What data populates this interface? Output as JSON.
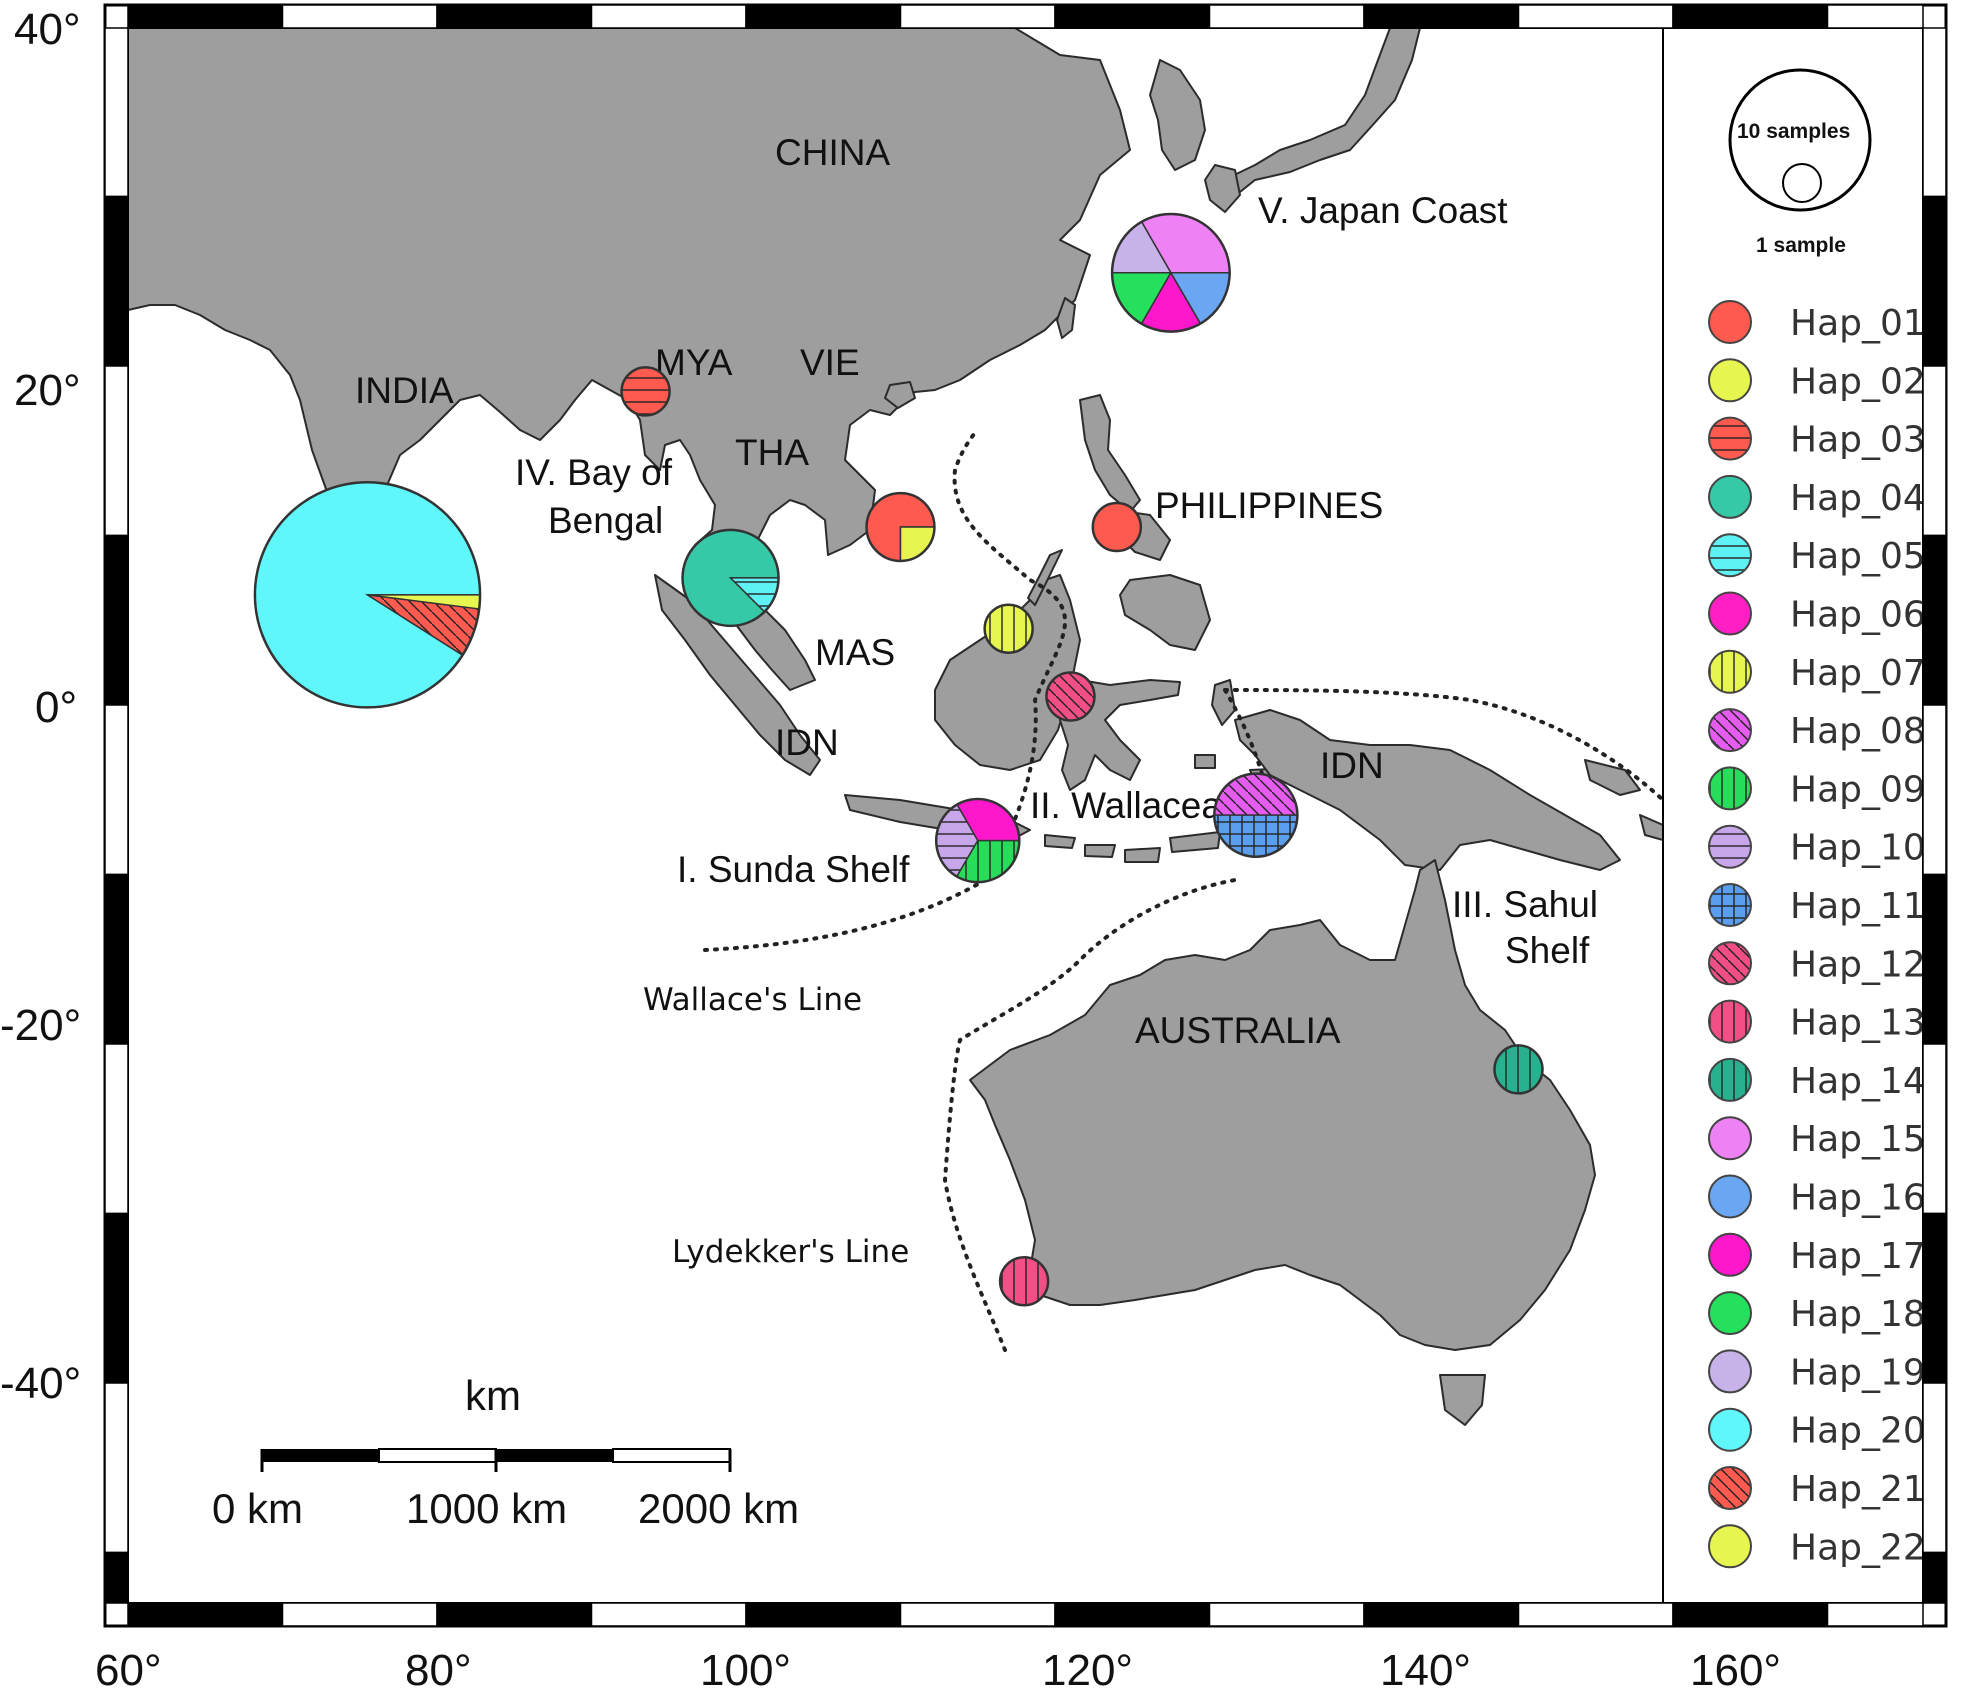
{
  "axes": {
    "lat_labels": [
      "40°",
      "20°",
      "0°",
      "-20°",
      "-40°"
    ],
    "lon_labels": [
      "60°",
      "80°",
      "100°",
      "120°",
      "140°",
      "160°"
    ]
  },
  "regions": {
    "china": "CHINA",
    "india": "INDIA",
    "mya": "MYA",
    "vie": "VIE",
    "tha": "THA",
    "mas": "MAS",
    "idn_west": "IDN",
    "idn_east": "IDN",
    "philippines": "PHILIPPINES",
    "australia": "AUSTRALIA",
    "japan_coast": "V. Japan Coast",
    "bay_line1": "IV. Bay of",
    "bay_line2": "Bengal",
    "wallacea": "II. Wallacea",
    "sunda": "I. Sunda Shelf",
    "sahul_line1": "III. Sahul",
    "sahul_line2": "Shelf"
  },
  "lines": {
    "wallace": "Wallace's Line",
    "lydekker": "Lydekker's Line"
  },
  "scale_bar": {
    "unit": "km",
    "ticks": [
      "0 km",
      "1000 km",
      "2000 km"
    ]
  },
  "size_legend": {
    "large": "10 samples",
    "small": "1 sample"
  },
  "colors": {
    "land": "#9e9e9e",
    "coast": "#2b2b2b"
  },
  "legend": [
    {
      "label": "Hap_01",
      "color": "#ff5a4f",
      "pattern": "solid"
    },
    {
      "label": "Hap_02",
      "color": "#e6f550",
      "pattern": "solid"
    },
    {
      "label": "Hap_03",
      "color": "#ff5a4f",
      "pattern": "horizontal"
    },
    {
      "label": "Hap_04",
      "color": "#36c9a8",
      "pattern": "solid"
    },
    {
      "label": "Hap_05",
      "color": "#5ef2f5",
      "pattern": "horizontal"
    },
    {
      "label": "Hap_06",
      "color": "#ff1fc4",
      "pattern": "solid"
    },
    {
      "label": "Hap_07",
      "color": "#e6f550",
      "pattern": "vertical"
    },
    {
      "label": "Hap_08",
      "color": "#e65cf0",
      "pattern": "diagonal"
    },
    {
      "label": "Hap_09",
      "color": "#27dd5a",
      "pattern": "vertical"
    },
    {
      "label": "Hap_10",
      "color": "#c8a6ea",
      "pattern": "horizontal"
    },
    {
      "label": "Hap_11",
      "color": "#5c9eee",
      "pattern": "grid"
    },
    {
      "label": "Hap_12",
      "color": "#f24f86",
      "pattern": "diagonal"
    },
    {
      "label": "Hap_13",
      "color": "#f24f86",
      "pattern": "vertical"
    },
    {
      "label": "Hap_14",
      "color": "#29b08f",
      "pattern": "vertical"
    },
    {
      "label": "Hap_15",
      "color": "#ee82f5",
      "pattern": "solid"
    },
    {
      "label": "Hap_16",
      "color": "#6ba6f2",
      "pattern": "solid"
    },
    {
      "label": "Hap_17",
      "color": "#ff17cc",
      "pattern": "solid"
    },
    {
      "label": "Hap_18",
      "color": "#25e05c",
      "pattern": "solid"
    },
    {
      "label": "Hap_19",
      "color": "#c7b3ea",
      "pattern": "solid"
    },
    {
      "label": "Hap_20",
      "color": "#5ff7fa",
      "pattern": "solid"
    },
    {
      "label": "Hap_21",
      "color": "#ff5a4f",
      "pattern": "diagonal"
    },
    {
      "label": "Hap_22",
      "color": "#e6f550",
      "pattern": "solid"
    }
  ],
  "sampling_sites": [
    {
      "name": "bay-of-bengal",
      "lon": 93.5,
      "lat": 18.5,
      "n": 1,
      "haplotypes": [
        {
          "hap": "Hap_03",
          "frac": 1
        }
      ]
    },
    {
      "name": "india-west-coast",
      "lon": 75.5,
      "lat": 6.5,
      "n": 22,
      "haplotypes": [
        {
          "hap": "Hap_20",
          "frac": 0.91
        },
        {
          "hap": "Hap_21",
          "frac": 0.07
        },
        {
          "hap": "Hap_22",
          "frac": 0.02
        }
      ]
    },
    {
      "name": "malay-peninsula",
      "lon": 99.0,
      "lat": 7.5,
      "n": 4,
      "haplotypes": [
        {
          "hap": "Hap_04",
          "frac": 0.875
        },
        {
          "hap": "Hap_05",
          "frac": 0.125
        }
      ]
    },
    {
      "name": "vietnam-south",
      "lon": 110.0,
      "lat": 10.5,
      "n": 2,
      "haplotypes": [
        {
          "hap": "Hap_01",
          "frac": 0.75
        },
        {
          "hap": "Hap_02",
          "frac": 0.25
        }
      ]
    },
    {
      "name": "philippines",
      "lon": 124.0,
      "lat": 10.5,
      "n": 1,
      "haplotypes": [
        {
          "hap": "Hap_01",
          "frac": 1
        }
      ]
    },
    {
      "name": "borneo-north",
      "lon": 117.0,
      "lat": 4.5,
      "n": 1,
      "haplotypes": [
        {
          "hap": "Hap_07",
          "frac": 1
        }
      ]
    },
    {
      "name": "sulawesi",
      "lon": 121.0,
      "lat": 0.5,
      "n": 1,
      "haplotypes": [
        {
          "hap": "Hap_12",
          "frac": 1
        }
      ]
    },
    {
      "name": "java-east",
      "lon": 115.0,
      "lat": -8.0,
      "n": 3,
      "haplotypes": [
        {
          "hap": "Hap_17",
          "frac": 0.333
        },
        {
          "hap": "Hap_10",
          "frac": 0.333
        },
        {
          "hap": "Hap_09",
          "frac": 0.334
        }
      ]
    },
    {
      "name": "papua-west",
      "lon": 133.0,
      "lat": -6.5,
      "n": 3,
      "haplotypes": [
        {
          "hap": "Hap_08",
          "frac": 0.5
        },
        {
          "hap": "Hap_11",
          "frac": 0.5
        }
      ]
    },
    {
      "name": "japan-coast",
      "lon": 127.5,
      "lat": 25.5,
      "n": 6,
      "haplotypes": [
        {
          "hap": "Hap_15",
          "frac": 0.333
        },
        {
          "hap": "Hap_19",
          "frac": 0.167
        },
        {
          "hap": "Hap_18",
          "frac": 0.167
        },
        {
          "hap": "Hap_17",
          "frac": 0.167
        },
        {
          "hap": "Hap_16",
          "frac": 0.166
        }
      ]
    },
    {
      "name": "queensland",
      "lon": 150.0,
      "lat": -21.5,
      "n": 1,
      "haplotypes": [
        {
          "hap": "Hap_14",
          "frac": 1
        }
      ]
    },
    {
      "name": "western-australia",
      "lon": 118.0,
      "lat": -34.0,
      "n": 1,
      "haplotypes": [
        {
          "hap": "Hap_13",
          "frac": 1
        }
      ]
    }
  ]
}
